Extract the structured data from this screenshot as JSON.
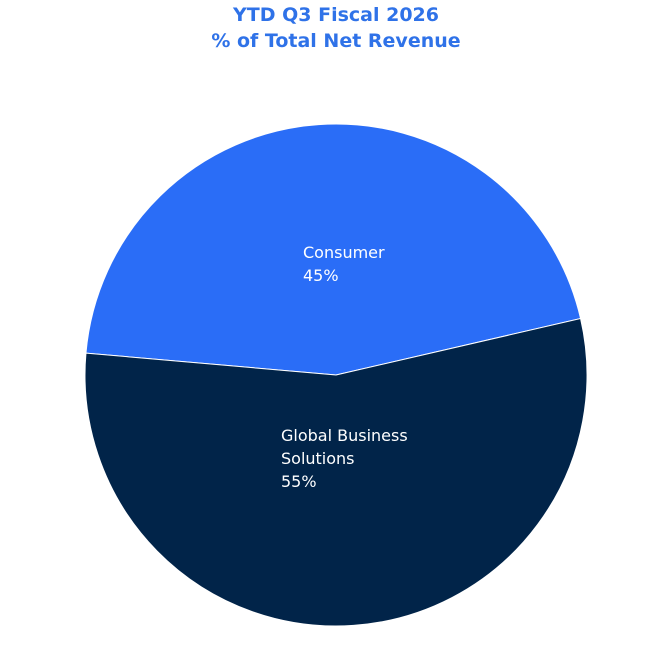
{
  "chart_data": {
    "type": "pie",
    "title": "YTD Q3 Fiscal 2026",
    "subtitle": "% of Total Net Revenue",
    "categories": [
      "Consumer",
      "Global Business Solutions"
    ],
    "values": [
      45,
      55
    ],
    "value_labels": [
      "45%",
      "55%"
    ],
    "colors": [
      "#2a6df7",
      "#012449"
    ]
  }
}
